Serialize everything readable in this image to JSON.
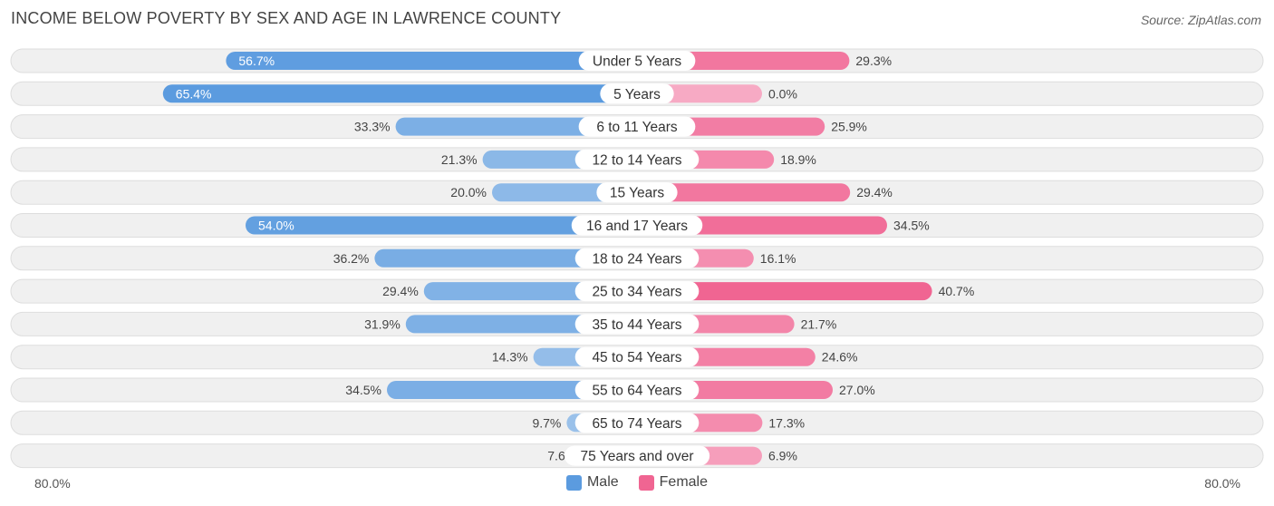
{
  "title": "INCOME BELOW POVERTY BY SEX AND AGE IN LAWRENCE COUNTY",
  "source": "Source: ZipAtlas.com",
  "colors": {
    "male_strong": "#5b9bdf",
    "male_light": "#a6c8ec",
    "female_strong": "#f06592",
    "female_light": "#f7aac4",
    "row_bg": "#f0f0f0",
    "row_border": "#dddddd"
  },
  "legend": {
    "male": "Male",
    "female": "Female"
  },
  "axis": {
    "left_label": "80.0%",
    "right_label": "80.0%"
  },
  "chart_data": {
    "type": "bar",
    "orientation": "horizontal-diverging",
    "title": "INCOME BELOW POVERTY BY SEX AND AGE IN LAWRENCE COUNTY",
    "xlim": [
      -80,
      80
    ],
    "categories": [
      "Under 5 Years",
      "5 Years",
      "6 to 11 Years",
      "12 to 14 Years",
      "15 Years",
      "16 and 17 Years",
      "18 to 24 Years",
      "25 to 34 Years",
      "35 to 44 Years",
      "45 to 54 Years",
      "55 to 64 Years",
      "65 to 74 Years",
      "75 Years and over"
    ],
    "series": [
      {
        "name": "Male",
        "values": [
          56.7,
          65.4,
          33.3,
          21.3,
          20.0,
          54.0,
          36.2,
          29.4,
          31.9,
          14.3,
          34.5,
          9.7,
          7.6
        ],
        "labels": [
          "56.7%",
          "65.4%",
          "33.3%",
          "21.3%",
          "20.0%",
          "54.0%",
          "36.2%",
          "29.4%",
          "31.9%",
          "14.3%",
          "34.5%",
          "9.7%",
          "7.6%"
        ]
      },
      {
        "name": "Female",
        "values": [
          29.3,
          0.0,
          25.9,
          18.9,
          29.4,
          34.5,
          16.1,
          40.7,
          21.7,
          24.6,
          27.0,
          17.3,
          6.9
        ],
        "labels": [
          "29.3%",
          "0.0%",
          "25.9%",
          "18.9%",
          "29.4%",
          "34.5%",
          "16.1%",
          "40.7%",
          "21.7%",
          "24.6%",
          "27.0%",
          "17.3%",
          "6.9%"
        ]
      }
    ]
  }
}
